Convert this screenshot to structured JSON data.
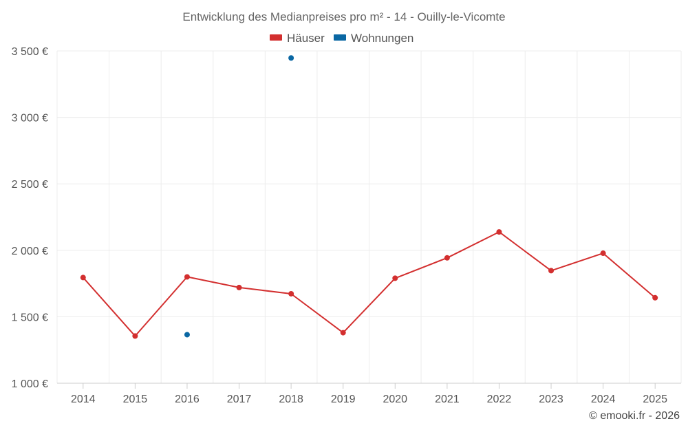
{
  "chart_data": {
    "type": "line",
    "title": "Entwicklung des Medianpreises pro m² - 14 - Ouilly-le-Vicomte",
    "categories": [
      "2014",
      "2015",
      "2016",
      "2017",
      "2018",
      "2019",
      "2020",
      "2021",
      "2022",
      "2023",
      "2024",
      "2025"
    ],
    "ylim": [
      1000,
      3500
    ],
    "yticks": [
      1000,
      1500,
      2000,
      2500,
      3000,
      3500
    ],
    "ytick_labels": [
      "1 000 €",
      "1 500 €",
      "2 000 €",
      "2 500 €",
      "3 000 €",
      "3 500 €"
    ],
    "grid": true,
    "legend_position": "top-center",
    "series": [
      {
        "name": "Häuser",
        "color": "#d32f2f",
        "values": [
          1795,
          1355,
          1800,
          1720,
          1673,
          1380,
          1790,
          1943,
          2138,
          1847,
          1978,
          1643
        ]
      },
      {
        "name": "Wohnungen",
        "color": "#0a67a3",
        "values": [
          null,
          null,
          1365,
          null,
          3447,
          null,
          null,
          null,
          null,
          null,
          null,
          null
        ]
      }
    ]
  },
  "credit": "© emooki.fr - 2026"
}
